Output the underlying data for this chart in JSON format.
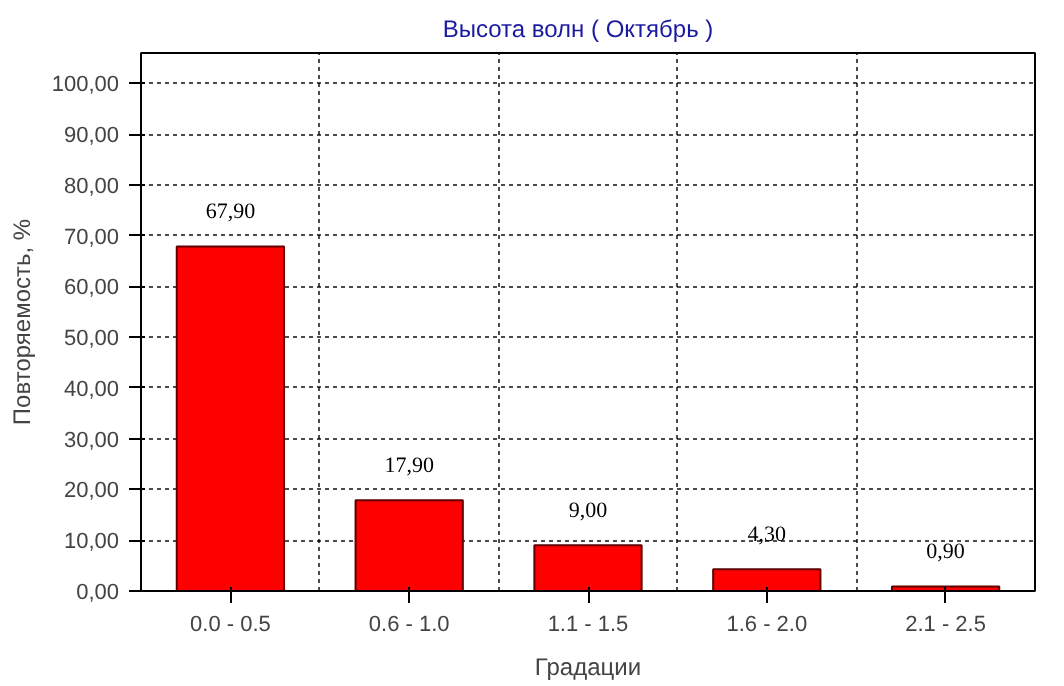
{
  "chart_data": {
    "type": "bar",
    "title": "Высота волн    ( Октябрь )",
    "xlabel": "Градации",
    "ylabel": "Повторяемость, %",
    "categories": [
      "0.0 - 0.5",
      "0.6 - 1.0",
      "1.1 - 1.5",
      "1.6 - 2.0",
      "2.1 - 2.5"
    ],
    "values": [
      67.9,
      17.9,
      9.0,
      4.3,
      0.9
    ],
    "value_labels": [
      "67,90",
      "17,90",
      "9,00",
      "4,30",
      "0,90"
    ],
    "color": "#ff0000",
    "ylim": [
      0,
      106
    ],
    "yticks": [
      {
        "value": 0,
        "label": "0,00"
      },
      {
        "value": 10,
        "label": "10,00"
      },
      {
        "value": 20,
        "label": "20,00"
      },
      {
        "value": 30,
        "label": "30,00"
      },
      {
        "value": 40,
        "label": "40,00"
      },
      {
        "value": 50,
        "label": "50,00"
      },
      {
        "value": 60,
        "label": "60,00"
      },
      {
        "value": 70,
        "label": "70,00"
      },
      {
        "value": 80,
        "label": "80,00"
      },
      {
        "value": 90,
        "label": "90,00"
      },
      {
        "value": 100,
        "label": "100,00"
      }
    ],
    "grid": true
  }
}
